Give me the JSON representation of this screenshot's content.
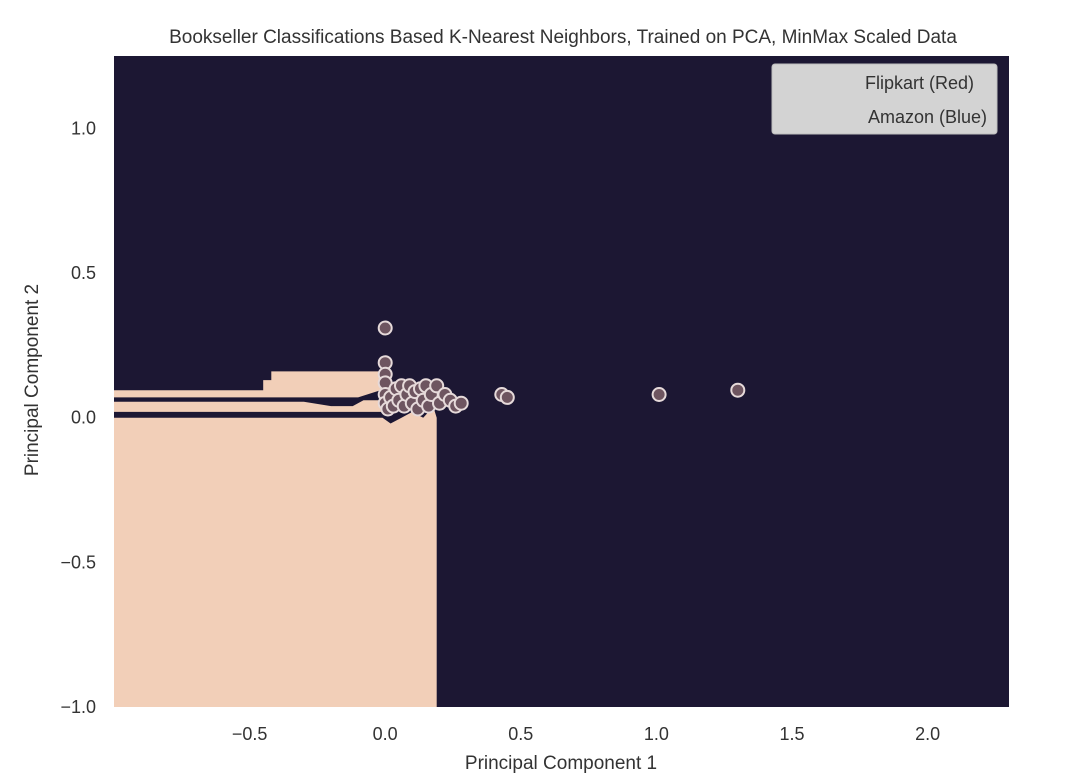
{
  "chart_data": {
    "type": "scatter",
    "title": "Bookseller Classifications Based K-Nearest Neighbors, Trained on PCA, MinMax Scaled Data",
    "xlabel": "Principal Component 1",
    "ylabel": "Principal Component 2",
    "xlim": [
      -1.0,
      2.3
    ],
    "ylim": [
      -1.0,
      1.25
    ],
    "xticks": [
      -0.5,
      0.0,
      0.5,
      1.0,
      1.5,
      2.0
    ],
    "xtick_labels": [
      "−0.5",
      "0.0",
      "0.5",
      "1.0",
      "1.5",
      "2.0"
    ],
    "yticks": [
      -1.0,
      -0.5,
      0.0,
      0.5,
      1.0
    ],
    "ytick_labels": [
      "−1.0",
      "−0.5",
      "0.0",
      "0.5",
      "1.0"
    ],
    "grid": false,
    "background_color": "#1c1733",
    "region_color": "#f2cfb8",
    "point_fill": "#6e5560",
    "point_edge": "#e6dada",
    "legend": {
      "placement": "top-right",
      "entries": [
        "Flipkart (Red)",
        "Amazon (Blue)"
      ]
    },
    "decision_region_flipkart": [
      [
        -1.0,
        -1.0
      ],
      [
        0.19,
        -1.0
      ],
      [
        0.19,
        0.0
      ],
      [
        0.18,
        0.03
      ],
      [
        0.16,
        0.02
      ],
      [
        0.14,
        0.0
      ],
      [
        0.1,
        0.02
      ],
      [
        0.06,
        0.0
      ],
      [
        0.02,
        -0.02
      ],
      [
        -0.01,
        0.0
      ],
      [
        -1.0,
        0.0
      ]
    ],
    "decision_region_top_band": [
      [
        -1.0,
        0.095
      ],
      [
        -0.45,
        0.095
      ],
      [
        -0.45,
        0.13
      ],
      [
        -0.42,
        0.13
      ],
      [
        -0.42,
        0.16
      ],
      [
        0.0,
        0.16
      ],
      [
        0.0,
        0.1
      ],
      [
        -0.1,
        0.07
      ],
      [
        -1.0,
        0.07
      ]
    ],
    "decision_region_mid_band": [
      [
        -1.0,
        0.055
      ],
      [
        -0.3,
        0.055
      ],
      [
        -0.2,
        0.04
      ],
      [
        -0.12,
        0.04
      ],
      [
        -0.08,
        0.06
      ],
      [
        0.0,
        0.06
      ],
      [
        0.0,
        0.02
      ],
      [
        -1.0,
        0.02
      ]
    ],
    "points": [
      {
        "x": 0.0,
        "y": 0.31
      },
      {
        "x": 0.0,
        "y": 0.19
      },
      {
        "x": 0.0,
        "y": 0.15
      },
      {
        "x": 0.0,
        "y": 0.12
      },
      {
        "x": 0.0,
        "y": 0.08
      },
      {
        "x": 0.0,
        "y": 0.05
      },
      {
        "x": 0.01,
        "y": 0.03
      },
      {
        "x": 0.02,
        "y": 0.07
      },
      {
        "x": 0.03,
        "y": 0.04
      },
      {
        "x": 0.04,
        "y": 0.1
      },
      {
        "x": 0.05,
        "y": 0.06
      },
      {
        "x": 0.06,
        "y": 0.11
      },
      {
        "x": 0.07,
        "y": 0.04
      },
      {
        "x": 0.08,
        "y": 0.08
      },
      {
        "x": 0.09,
        "y": 0.11
      },
      {
        "x": 0.1,
        "y": 0.05
      },
      {
        "x": 0.11,
        "y": 0.09
      },
      {
        "x": 0.12,
        "y": 0.03
      },
      {
        "x": 0.13,
        "y": 0.1
      },
      {
        "x": 0.14,
        "y": 0.06
      },
      {
        "x": 0.15,
        "y": 0.11
      },
      {
        "x": 0.16,
        "y": 0.04
      },
      {
        "x": 0.17,
        "y": 0.08
      },
      {
        "x": 0.19,
        "y": 0.11
      },
      {
        "x": 0.2,
        "y": 0.05
      },
      {
        "x": 0.22,
        "y": 0.08
      },
      {
        "x": 0.24,
        "y": 0.06
      },
      {
        "x": 0.26,
        "y": 0.04
      },
      {
        "x": 0.28,
        "y": 0.05
      },
      {
        "x": 0.43,
        "y": 0.08
      },
      {
        "x": 0.45,
        "y": 0.07
      },
      {
        "x": 1.01,
        "y": 0.08
      },
      {
        "x": 1.3,
        "y": 0.095
      }
    ]
  }
}
